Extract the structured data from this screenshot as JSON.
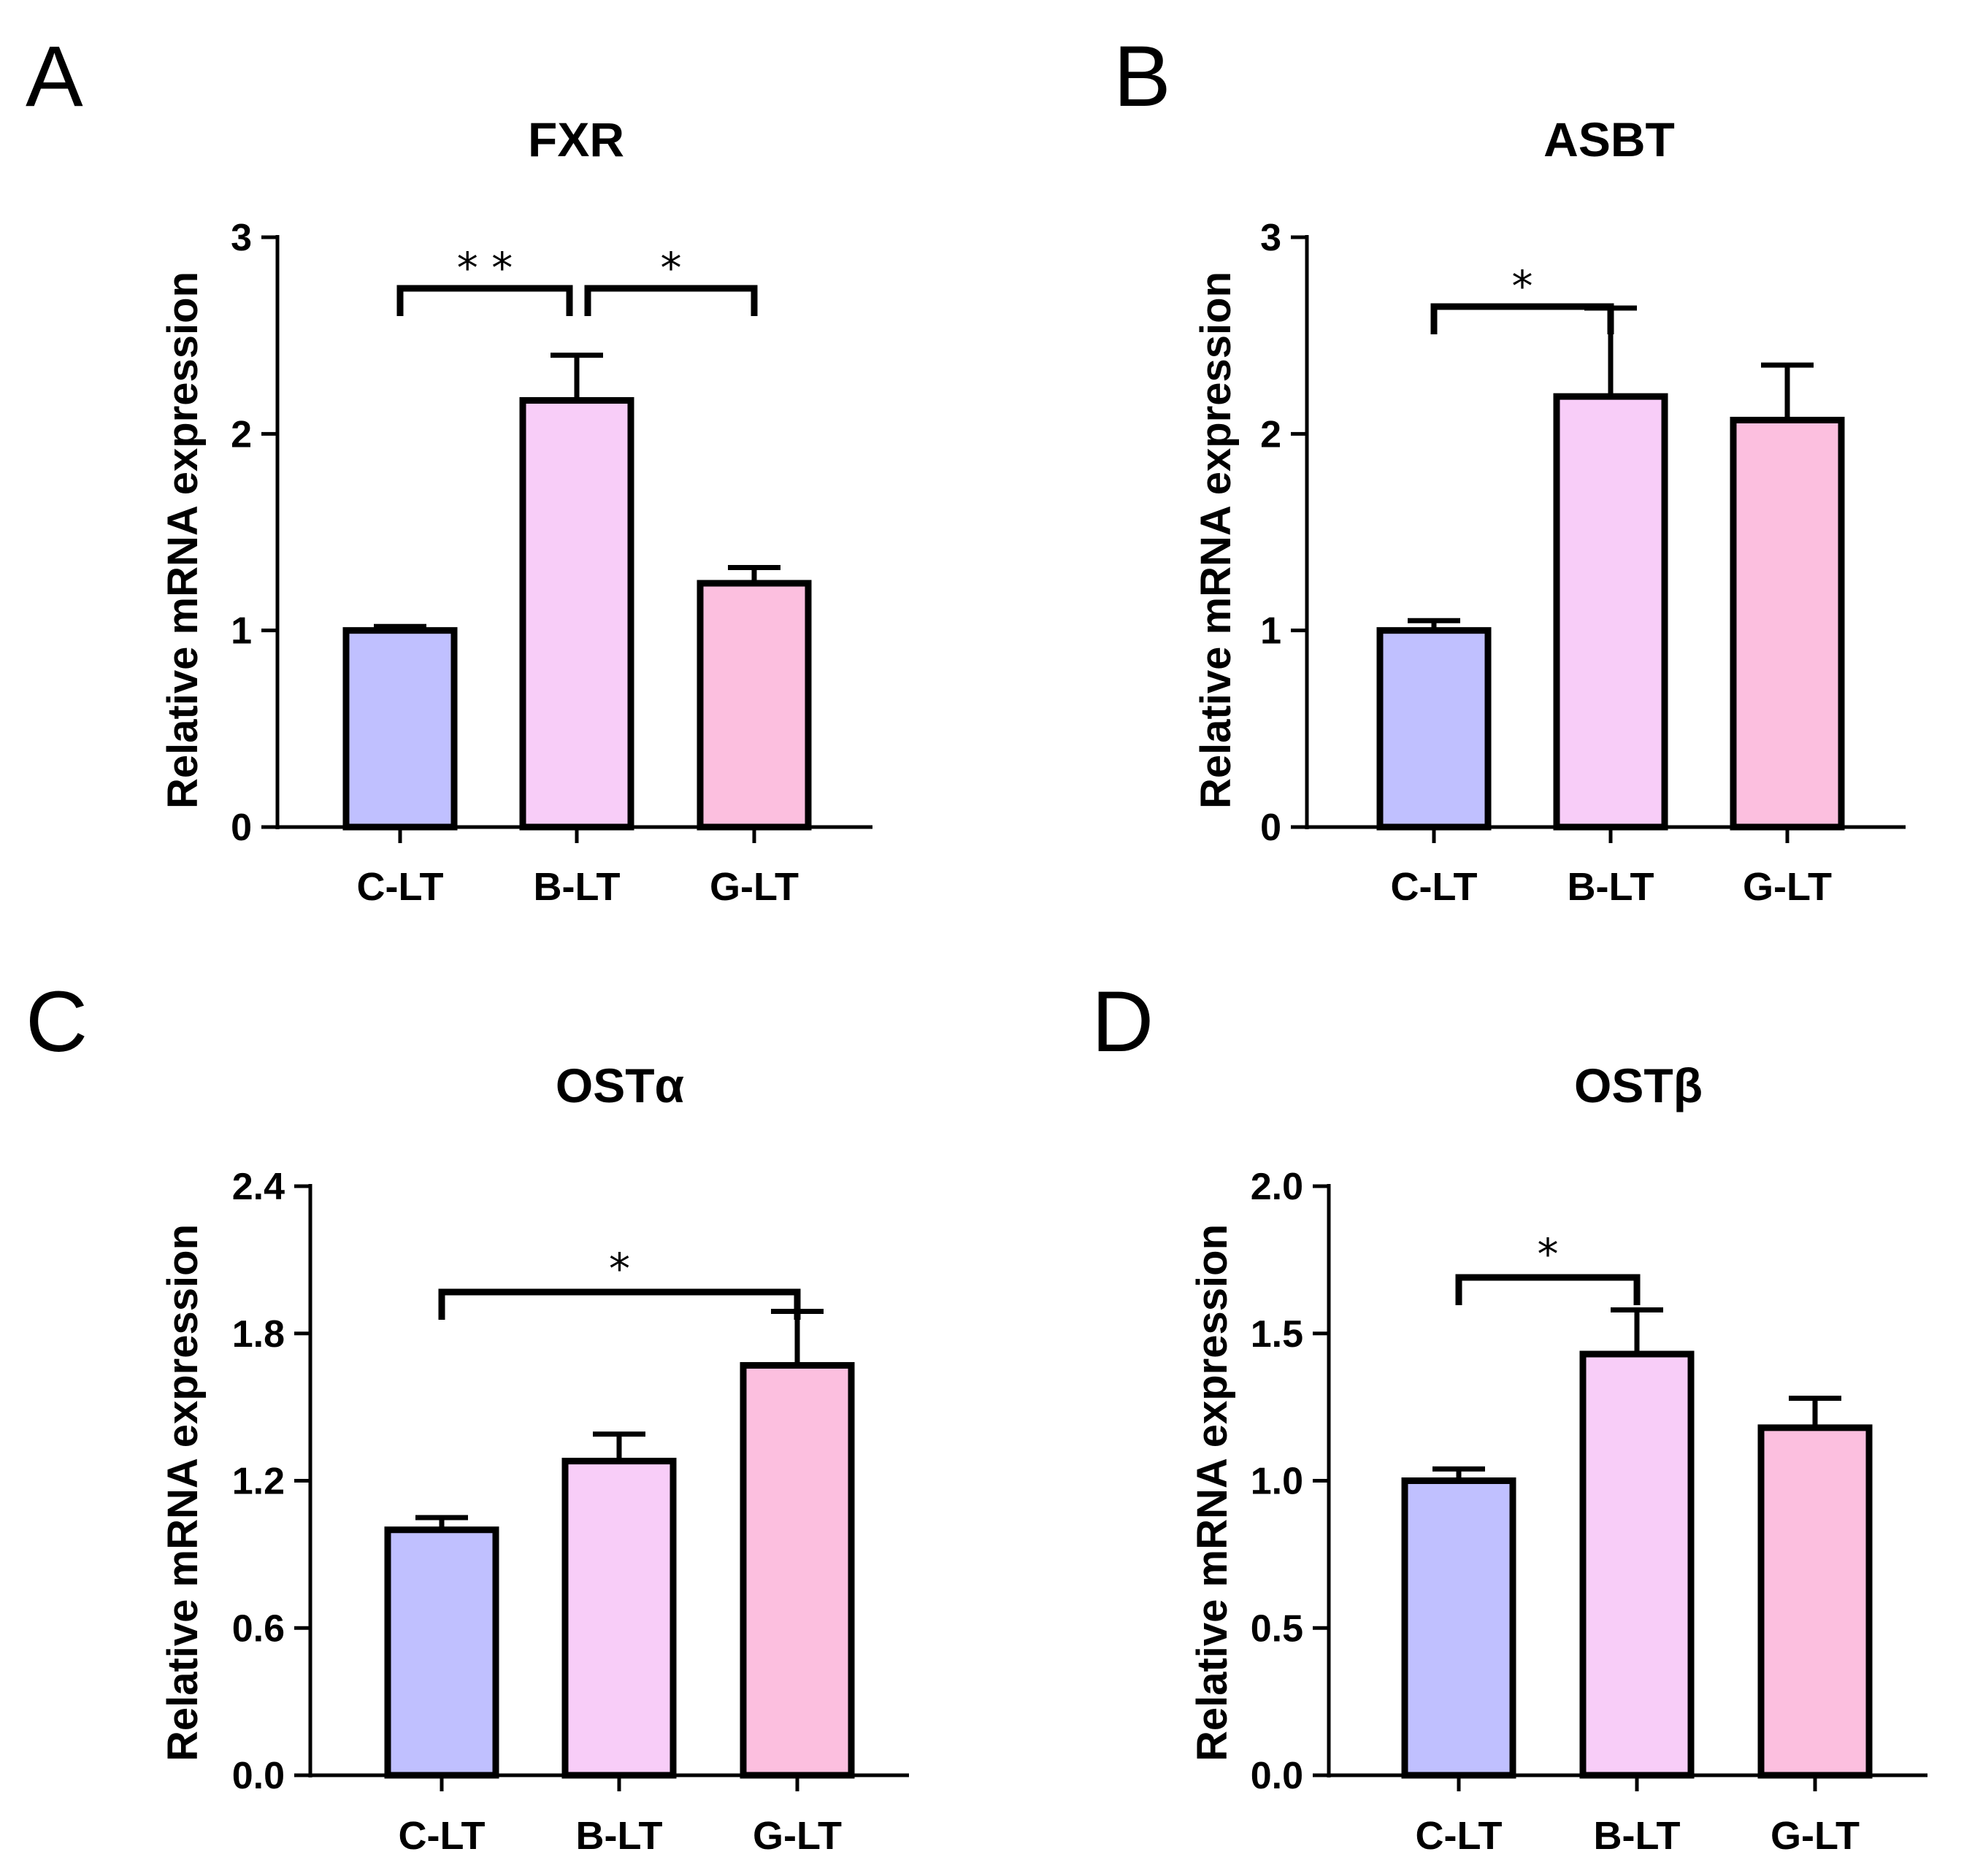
{
  "chart_data": [
    {
      "panel": "A",
      "type": "bar",
      "title": "FXR",
      "ylabel": "Relative mRNA expression",
      "xlabel": "",
      "categories": [
        "C-LT",
        "B-LT",
        "G-LT"
      ],
      "values": [
        1.0,
        2.17,
        1.24
      ],
      "errors": [
        0.02,
        0.23,
        0.08
      ],
      "colors": [
        "#c0c0ff",
        "#f8cdf8",
        "#fcbfdf"
      ],
      "ylim": [
        0,
        3
      ],
      "yticks": [
        "0",
        "1",
        "2",
        "3"
      ],
      "significance": [
        {
          "from": 0,
          "to": 1,
          "label": "* *"
        },
        {
          "from": 1,
          "to": 2,
          "label": "*"
        }
      ]
    },
    {
      "panel": "B",
      "type": "bar",
      "title": "ASBT",
      "ylabel": "Relative mRNA expression",
      "xlabel": "",
      "categories": [
        "C-LT",
        "B-LT",
        "G-LT"
      ],
      "values": [
        1.0,
        2.19,
        2.07
      ],
      "errors": [
        0.05,
        0.45,
        0.28
      ],
      "colors": [
        "#c0c0ff",
        "#f8cdf8",
        "#fcbfdf"
      ],
      "ylim": [
        0,
        3
      ],
      "yticks": [
        "0",
        "1",
        "2",
        "3"
      ],
      "significance": [
        {
          "from": 0,
          "to": 1,
          "label": "*"
        }
      ]
    },
    {
      "panel": "C",
      "type": "bar",
      "title": "OSTα",
      "ylabel": "Relative mRNA expression",
      "xlabel": "",
      "categories": [
        "C-LT",
        "B-LT",
        "G-LT"
      ],
      "values": [
        1.0,
        1.28,
        1.67
      ],
      "errors": [
        0.05,
        0.11,
        0.22
      ],
      "colors": [
        "#c0c0ff",
        "#f8cdf8",
        "#fcbfdf"
      ],
      "ylim": [
        0,
        2.4
      ],
      "yticks": [
        "0.0",
        "0.6",
        "1.2",
        "1.8",
        "2.4"
      ],
      "significance": [
        {
          "from": 0,
          "to": 2,
          "label": "*"
        }
      ]
    },
    {
      "panel": "D",
      "type": "bar",
      "title": "OSTβ",
      "ylabel": "Relative mRNA expression",
      "xlabel": "",
      "categories": [
        "C-LT",
        "B-LT",
        "G-LT"
      ],
      "values": [
        1.0,
        1.43,
        1.18
      ],
      "errors": [
        0.04,
        0.15,
        0.1
      ],
      "colors": [
        "#c0c0ff",
        "#f8cdf8",
        "#fcbfdf"
      ],
      "ylim": [
        0,
        2.0
      ],
      "yticks": [
        "0.0",
        "0.5",
        "1.0",
        "1.5",
        "2.0"
      ],
      "significance": [
        {
          "from": 0,
          "to": 1,
          "label": "*"
        }
      ]
    }
  ]
}
